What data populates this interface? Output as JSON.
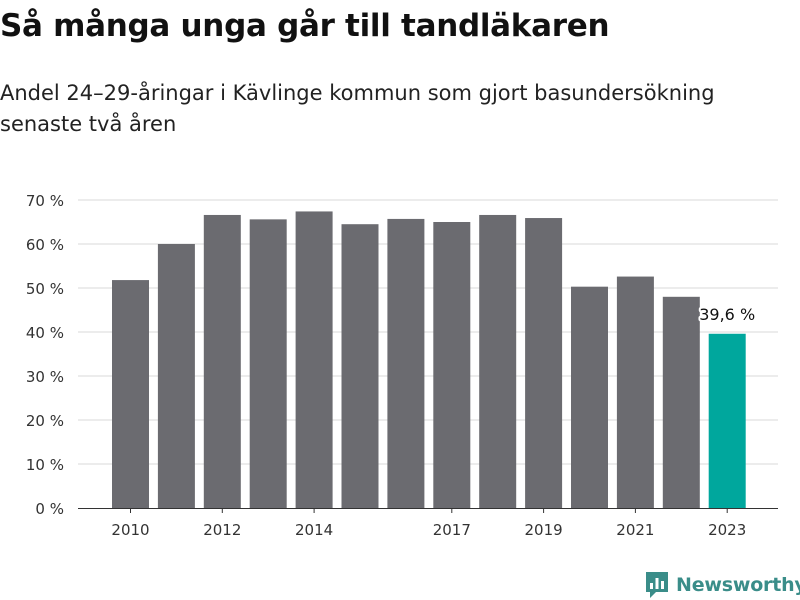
{
  "title": "Så många unga går till tandläkaren",
  "subtitle": "Andel 24–29-åringar i Kävlinge kommun som gjort basundersökning senaste två åren",
  "brand": {
    "name": "Newsworthy",
    "icon": "newsworthy-logo-icon",
    "color": "#3a8d89"
  },
  "colors": {
    "bar": "#6b6b70",
    "highlight": "#00a79d",
    "grid": "#d9d9d9",
    "axis": "#333333"
  },
  "chart_data": {
    "type": "bar",
    "title": "",
    "xlabel": "",
    "ylabel": "",
    "categories": [
      "2010",
      "2011",
      "2012",
      "2013",
      "2014",
      "2015",
      "2016",
      "2017",
      "2018",
      "2019",
      "2020",
      "2021",
      "2022",
      "2023"
    ],
    "values": [
      51.8,
      60.0,
      66.6,
      65.6,
      67.4,
      64.5,
      65.7,
      65.0,
      66.6,
      65.9,
      50.3,
      52.6,
      48.0,
      39.6
    ],
    "ylim": [
      0,
      70
    ],
    "yticks": [
      0,
      10,
      20,
      30,
      40,
      50,
      60,
      70
    ],
    "ytick_labels": [
      "0 %",
      "10 %",
      "20 %",
      "30 %",
      "40 %",
      "50 %",
      "60 %",
      "70 %"
    ],
    "xtick_labels": [
      "2010",
      "2012",
      "2014",
      "2017",
      "2019",
      "2021",
      "2023"
    ],
    "highlight_index": 13,
    "annotation": {
      "index": 13,
      "text": "39,6 %"
    },
    "grid": true,
    "legend": "none"
  }
}
